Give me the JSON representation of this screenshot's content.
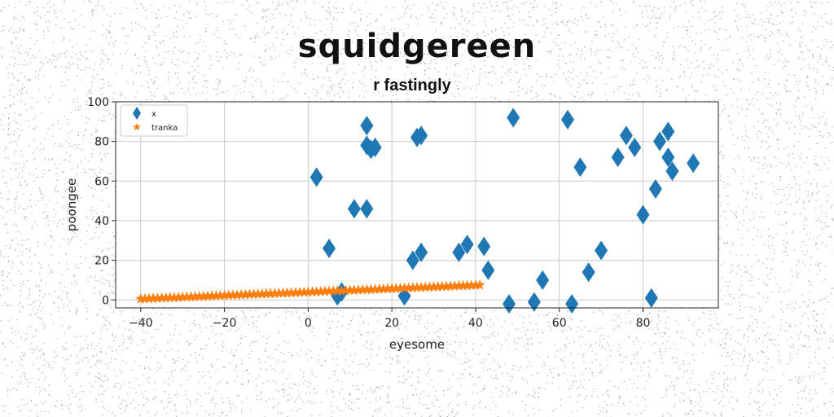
{
  "chart_data": {
    "type": "scatter",
    "title": "squidgereen",
    "subtitle": "r fastingly",
    "xlabel": "eyesome",
    "ylabel": "poongee",
    "xlim": [
      -46,
      98
    ],
    "ylim": [
      -4,
      100
    ],
    "xticks": [
      -40,
      -20,
      0,
      20,
      40,
      60,
      80
    ],
    "yticks": [
      0,
      20,
      40,
      60,
      80,
      100
    ],
    "grid": true,
    "legend_position": "top-left",
    "series": [
      {
        "name": "x",
        "marker": "diamond",
        "color": "#1f77b4",
        "points": [
          [
            2,
            62
          ],
          [
            5,
            26
          ],
          [
            7,
            2
          ],
          [
            8,
            4
          ],
          [
            11,
            46
          ],
          [
            14,
            46
          ],
          [
            14,
            78
          ],
          [
            14,
            88
          ],
          [
            15,
            76
          ],
          [
            16,
            77
          ],
          [
            23,
            2
          ],
          [
            25,
            20
          ],
          [
            26,
            82
          ],
          [
            27,
            83
          ],
          [
            27,
            24
          ],
          [
            36,
            24
          ],
          [
            38,
            28
          ],
          [
            42,
            27
          ],
          [
            43,
            15
          ],
          [
            48,
            -2
          ],
          [
            49,
            92
          ],
          [
            54,
            -1
          ],
          [
            56,
            10
          ],
          [
            62,
            91
          ],
          [
            63,
            -2
          ],
          [
            65,
            67
          ],
          [
            67,
            14
          ],
          [
            70,
            25
          ],
          [
            74,
            72
          ],
          [
            76,
            83
          ],
          [
            78,
            77
          ],
          [
            80,
            43
          ],
          [
            82,
            1
          ],
          [
            83,
            56
          ],
          [
            84,
            80
          ],
          [
            86,
            72
          ],
          [
            86,
            85
          ],
          [
            87,
            65
          ],
          [
            92,
            69
          ]
        ]
      },
      {
        "name": "tranka",
        "marker": "star",
        "color": "#ff7f0e",
        "x_start": -40,
        "x_end": 41,
        "x_step": 1,
        "y_start": 0.5,
        "y_end": 7.5
      }
    ]
  }
}
